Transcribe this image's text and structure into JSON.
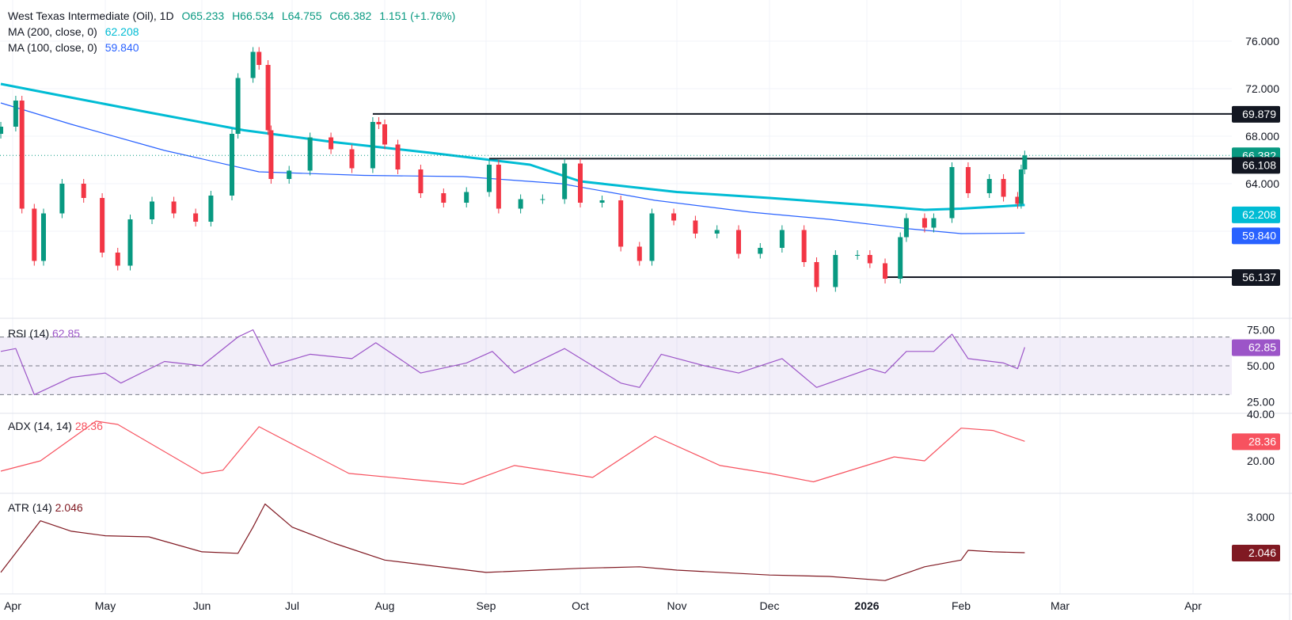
{
  "header": {
    "title": "West Texas Intermediate (Oil), 1D",
    "open": "O65.233",
    "high": "H66.534",
    "low": "L64.755",
    "close": "C66.382",
    "change": "1.151 (+1.76%)",
    "ma200_label": "MA (200, close, 0)",
    "ma200_value": "62.208",
    "ma100_label": "MA (100, close, 0)",
    "ma100_value": "59.840",
    "rsi_label": "RSI (14)",
    "rsi_value": "62.85",
    "adx_label": "ADX (14, 14)",
    "adx_value": "28.36",
    "atr_label": "ATR (14)",
    "atr_value": "2.046"
  },
  "colors": {
    "up": "#089981",
    "down": "#f23645",
    "ma200": "#00bcd4",
    "ma100": "#2962ff",
    "rsi": "#9c55c8",
    "adx": "#f7525f",
    "atr": "#801922",
    "level": "#131722"
  },
  "chart_data": {
    "type": "candlestick",
    "x_ticks": [
      "Apr",
      "May",
      "Jun",
      "Jul",
      "Aug",
      "Sep",
      "Oct",
      "Nov",
      "Dec",
      "2026",
      "Feb",
      "Mar",
      "Apr"
    ],
    "price_ticks": [
      "76.000",
      "72.000",
      "68.000",
      "64.000"
    ],
    "price_ylim": [
      54,
      77
    ],
    "close": [
      [
        "2025-03-28",
        68.8
      ],
      [
        "2025-04-02",
        71.0
      ],
      [
        "2025-04-04",
        61.9
      ],
      [
        "2025-04-08",
        57.5
      ],
      [
        "2025-04-11",
        61.5
      ],
      [
        "2025-04-17",
        64.0
      ],
      [
        "2025-04-24",
        62.8
      ],
      [
        "2025-04-30",
        58.2
      ],
      [
        "2025-05-05",
        57.1
      ],
      [
        "2025-05-09",
        61.0
      ],
      [
        "2025-05-16",
        62.5
      ],
      [
        "2025-05-23",
        61.5
      ],
      [
        "2025-05-30",
        60.8
      ],
      [
        "2025-06-04",
        63.0
      ],
      [
        "2025-06-11",
        68.2
      ],
      [
        "2025-06-13",
        72.9
      ],
      [
        "2025-06-18",
        75.1
      ],
      [
        "2025-06-20",
        74.0
      ],
      [
        "2025-06-23",
        68.5
      ],
      [
        "2025-06-24",
        64.4
      ],
      [
        "2025-06-30",
        65.1
      ],
      [
        "2025-07-07",
        67.9
      ],
      [
        "2025-07-14",
        66.9
      ],
      [
        "2025-07-21",
        65.3
      ],
      [
        "2025-07-28",
        69.2
      ],
      [
        "2025-07-30",
        69.0
      ],
      [
        "2025-08-01",
        67.3
      ],
      [
        "2025-08-05",
        65.2
      ],
      [
        "2025-08-12",
        63.2
      ],
      [
        "2025-08-19",
        62.4
      ],
      [
        "2025-08-26",
        63.3
      ],
      [
        "2025-09-02",
        65.6
      ],
      [
        "2025-09-05",
        61.9
      ],
      [
        "2025-09-12",
        62.7
      ],
      [
        "2025-09-19",
        62.7
      ],
      [
        "2025-09-26",
        65.7
      ],
      [
        "2025-10-01",
        62.4
      ],
      [
        "2025-10-08",
        62.6
      ],
      [
        "2025-10-14",
        58.7
      ],
      [
        "2025-10-20",
        57.5
      ],
      [
        "2025-10-24",
        61.5
      ],
      [
        "2025-10-31",
        60.9
      ],
      [
        "2025-11-07",
        59.8
      ],
      [
        "2025-11-14",
        60.1
      ],
      [
        "2025-11-21",
        58.1
      ],
      [
        "2025-11-28",
        58.6
      ],
      [
        "2025-12-05",
        60.1
      ],
      [
        "2025-12-12",
        57.4
      ],
      [
        "2025-12-16",
        55.3
      ],
      [
        "2025-12-22",
        58.0
      ],
      [
        "2025-12-29",
        58.0
      ],
      [
        "2026-01-02",
        57.3
      ],
      [
        "2026-01-07",
        56.0
      ],
      [
        "2026-01-12",
        59.5
      ],
      [
        "2026-01-14",
        61.1
      ],
      [
        "2026-01-20",
        60.3
      ],
      [
        "2026-01-23",
        61.1
      ],
      [
        "2026-01-29",
        65.4
      ],
      [
        "2026-02-03",
        63.2
      ],
      [
        "2026-02-09",
        64.4
      ],
      [
        "2026-02-13",
        62.9
      ],
      [
        "2026-02-17",
        62.3
      ],
      [
        "2026-02-18",
        65.2
      ],
      [
        "2026-02-19",
        66.382
      ]
    ],
    "ma200": [
      [
        "2025-03-28",
        72.4
      ],
      [
        "2025-04-15",
        71.5
      ],
      [
        "2025-05-15",
        70.0
      ],
      [
        "2025-06-15",
        68.5
      ],
      [
        "2025-07-15",
        67.5
      ],
      [
        "2025-08-15",
        66.6
      ],
      [
        "2025-09-15",
        65.6
      ],
      [
        "2025-10-01",
        64.2
      ],
      [
        "2025-11-01",
        63.3
      ],
      [
        "2025-12-01",
        62.8
      ],
      [
        "2026-01-01",
        62.2
      ],
      [
        "2026-01-20",
        61.8
      ],
      [
        "2026-02-01",
        61.9
      ],
      [
        "2026-02-19",
        62.208
      ]
    ],
    "ma100": [
      [
        "2025-03-28",
        70.8
      ],
      [
        "2025-04-20",
        69.0
      ],
      [
        "2025-05-20",
        66.8
      ],
      [
        "2025-06-20",
        65.0
      ],
      [
        "2025-07-25",
        64.7
      ],
      [
        "2025-08-25",
        64.6
      ],
      [
        "2025-09-25",
        64.0
      ],
      [
        "2025-10-25",
        62.6
      ],
      [
        "2025-11-25",
        61.6
      ],
      [
        "2025-12-20",
        61.0
      ],
      [
        "2026-01-15",
        60.2
      ],
      [
        "2026-02-01",
        59.8
      ],
      [
        "2026-02-19",
        59.84
      ]
    ],
    "levels": [
      {
        "value": "69.879",
        "from": "2025-07-28"
      },
      {
        "value": "66.108",
        "from": "2025-09-02"
      },
      {
        "value": "56.137",
        "from": "2026-01-07"
      }
    ],
    "last_price": "66.382",
    "rsi": {
      "ticks": [
        "75.00",
        "50.00",
        "25.00"
      ],
      "bands": [
        70,
        50,
        30
      ],
      "values": [
        [
          "2025-03-28",
          60
        ],
        [
          "2025-04-02",
          62
        ],
        [
          "2025-04-08",
          30
        ],
        [
          "2025-04-20",
          42
        ],
        [
          "2025-05-01",
          45
        ],
        [
          "2025-05-06",
          38
        ],
        [
          "2025-05-20",
          53
        ],
        [
          "2025-06-01",
          50
        ],
        [
          "2025-06-13",
          70
        ],
        [
          "2025-06-18",
          75
        ],
        [
          "2025-06-24",
          50
        ],
        [
          "2025-07-07",
          58
        ],
        [
          "2025-07-21",
          55
        ],
        [
          "2025-07-29",
          66
        ],
        [
          "2025-08-12",
          45
        ],
        [
          "2025-08-26",
          52
        ],
        [
          "2025-09-03",
          60
        ],
        [
          "2025-09-10",
          45
        ],
        [
          "2025-09-26",
          62
        ],
        [
          "2025-10-14",
          38
        ],
        [
          "2025-10-20",
          35
        ],
        [
          "2025-10-27",
          58
        ],
        [
          "2025-11-10",
          50
        ],
        [
          "2025-11-21",
          45
        ],
        [
          "2025-12-05",
          55
        ],
        [
          "2025-12-16",
          35
        ],
        [
          "2026-01-02",
          48
        ],
        [
          "2026-01-07",
          45
        ],
        [
          "2026-01-14",
          60
        ],
        [
          "2026-01-23",
          60
        ],
        [
          "2026-01-29",
          72
        ],
        [
          "2026-02-03",
          55
        ],
        [
          "2026-02-13",
          52
        ],
        [
          "2026-02-17",
          48
        ],
        [
          "2026-02-19",
          62.85
        ]
      ]
    },
    "adx": {
      "ticks": [
        "40.00",
        "20.00"
      ],
      "values": [
        [
          "2025-03-28",
          15.6
        ],
        [
          "2025-04-10",
          20
        ],
        [
          "2025-04-28",
          37
        ],
        [
          "2025-05-05",
          35.6
        ],
        [
          "2025-06-01",
          14.6
        ],
        [
          "2025-06-08",
          16
        ],
        [
          "2025-06-20",
          34.6
        ],
        [
          "2025-07-20",
          14.6
        ],
        [
          "2025-08-25",
          10
        ],
        [
          "2025-09-10",
          18
        ],
        [
          "2025-10-05",
          12.9
        ],
        [
          "2025-10-25",
          30.5
        ],
        [
          "2025-11-15",
          18
        ],
        [
          "2025-12-01",
          14.6
        ],
        [
          "2025-12-15",
          11
        ],
        [
          "2026-01-10",
          21.7
        ],
        [
          "2026-01-20",
          20
        ],
        [
          "2026-02-01",
          34
        ],
        [
          "2026-02-10",
          33
        ],
        [
          "2026-02-19",
          28.36
        ]
      ]
    },
    "atr": {
      "ticks": [
        "3.000"
      ],
      "values": [
        [
          "2025-03-28",
          1.52
        ],
        [
          "2025-04-10",
          2.9
        ],
        [
          "2025-04-20",
          2.62
        ],
        [
          "2025-05-01",
          2.5
        ],
        [
          "2025-05-15",
          2.47
        ],
        [
          "2025-06-01",
          2.07
        ],
        [
          "2025-06-13",
          2.03
        ],
        [
          "2025-06-18",
          2.73
        ],
        [
          "2025-06-22",
          3.35
        ],
        [
          "2025-07-01",
          2.73
        ],
        [
          "2025-07-15",
          2.3
        ],
        [
          "2025-08-01",
          1.85
        ],
        [
          "2025-09-01",
          1.52
        ],
        [
          "2025-10-01",
          1.63
        ],
        [
          "2025-10-20",
          1.67
        ],
        [
          "2025-11-01",
          1.58
        ],
        [
          "2025-12-01",
          1.45
        ],
        [
          "2025-12-20",
          1.41
        ],
        [
          "2026-01-07",
          1.3
        ],
        [
          "2026-01-20",
          1.67
        ],
        [
          "2026-02-01",
          1.85
        ],
        [
          "2026-02-03",
          2.11
        ],
        [
          "2026-02-10",
          2.07
        ],
        [
          "2026-02-19",
          2.046
        ]
      ]
    }
  }
}
